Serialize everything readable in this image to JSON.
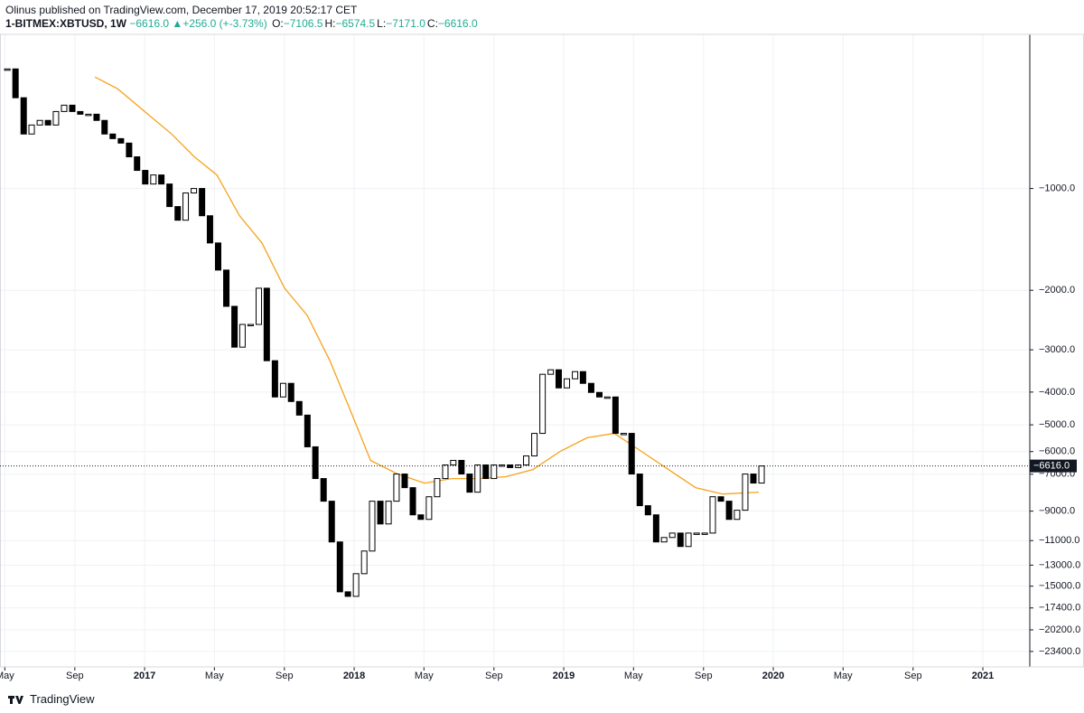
{
  "header": {
    "publisher": "Olinus published on TradingView.com, December 17, 2019 20:52:17 CET",
    "symbol": "1-BITMEX:XBTUSD, 1W",
    "last": "−6616.0",
    "change": "+256.0 (+-3.73%)",
    "ohlc": [
      {
        "key": "O:",
        "value": "−7106.5"
      },
      {
        "key": "H:",
        "value": "−6574.5"
      },
      {
        "key": "L:",
        "value": "−7171.0"
      },
      {
        "key": "C:",
        "value": "−6616.0"
      }
    ]
  },
  "footer": {
    "brand": "TradingView"
  },
  "chart_data": {
    "type": "candlestick",
    "log_scale": true,
    "grid": true,
    "ylim": [
      -26000,
      -350
    ],
    "yticks": [
      {
        "value": -1000,
        "label": "−1000.0"
      },
      {
        "value": -2000,
        "label": "−2000.0"
      },
      {
        "value": -3000,
        "label": "−3000.0"
      },
      {
        "value": -4000,
        "label": "−4000.0"
      },
      {
        "value": -5000,
        "label": "−5000.0"
      },
      {
        "value": -6000,
        "label": "−6000.0"
      },
      {
        "value": -7000,
        "label": "−7000.0"
      },
      {
        "value": -9000,
        "label": "−9000.0"
      },
      {
        "value": -11000,
        "label": "−11000.0"
      },
      {
        "value": -13000,
        "label": "−13000.0"
      },
      {
        "value": -15000,
        "label": "−15000.0"
      },
      {
        "value": -17400,
        "label": "−17400.0"
      },
      {
        "value": -20200,
        "label": "−20200.0"
      },
      {
        "value": -23400,
        "label": "−23400.0"
      }
    ],
    "xlim": [
      2016.31,
      2021.224
    ],
    "xticks": [
      {
        "value": 2016.333,
        "label": "May"
      },
      {
        "value": 2016.667,
        "label": "Sep"
      },
      {
        "value": 2017,
        "label": "2017"
      },
      {
        "value": 2017.333,
        "label": "May"
      },
      {
        "value": 2017.667,
        "label": "Sep"
      },
      {
        "value": 2018,
        "label": "2018"
      },
      {
        "value": 2018.333,
        "label": "May"
      },
      {
        "value": 2018.667,
        "label": "Sep"
      },
      {
        "value": 2019,
        "label": "2019"
      },
      {
        "value": 2019.333,
        "label": "May"
      },
      {
        "value": 2019.667,
        "label": "Sep"
      },
      {
        "value": 2020,
        "label": "2020"
      },
      {
        "value": 2020.333,
        "label": "May"
      },
      {
        "value": 2020.667,
        "label": "Sep"
      },
      {
        "value": 2021,
        "label": "2021"
      }
    ],
    "last_price": {
      "value": -6616,
      "label": "−6616.0"
    },
    "candles": {
      "color_up": "#ffffff",
      "color_down": "#000000",
      "x": [
        2016.345,
        2016.384,
        2016.423,
        2016.461,
        2016.5,
        2016.539,
        2016.577,
        2016.616,
        2016.655,
        2016.693,
        2016.732,
        2016.771,
        2016.809,
        2016.848,
        2016.887,
        2016.926,
        2016.964,
        2017.003,
        2017.042,
        2017.08,
        2017.119,
        2017.158,
        2017.196,
        2017.235,
        2017.274,
        2017.312,
        2017.351,
        2017.39,
        2017.429,
        2017.467,
        2017.506,
        2017.545,
        2017.583,
        2017.622,
        2017.661,
        2017.699,
        2017.738,
        2017.777,
        2017.815,
        2017.854,
        2017.893,
        2017.932,
        2017.97,
        2018.009,
        2018.048,
        2018.086,
        2018.125,
        2018.164,
        2018.202,
        2018.241,
        2018.28,
        2018.318,
        2018.357,
        2018.396,
        2018.435,
        2018.473,
        2018.512,
        2018.551,
        2018.589,
        2018.628,
        2018.667,
        2018.705,
        2018.744,
        2018.783,
        2018.821,
        2018.86,
        2018.899,
        2018.938,
        2018.976,
        2019.015,
        2019.054,
        2019.092,
        2019.131,
        2019.17,
        2019.208,
        2019.247,
        2019.286,
        2019.324,
        2019.363,
        2019.402,
        2019.441,
        2019.479,
        2019.518,
        2019.557,
        2019.595,
        2019.634,
        2019.673,
        2019.711,
        2019.75,
        2019.789,
        2019.827,
        2019.866,
        2019.905,
        2019.944
      ],
      "close": [
        -443,
        -539,
        -690,
        -649,
        -629,
        -649,
        -592,
        -567,
        -592,
        -603,
        -603,
        -629,
        -690,
        -712,
        -734,
        -806,
        -884,
        -970,
        -912,
        -970,
        -1131,
        -1241,
        -1031,
        -1000,
        -1204,
        -1449,
        -1743,
        -2231,
        -2946,
        -2524,
        -2524,
        -1972,
        -3231,
        -4136,
        -3770,
        -4266,
        -4680,
        -5808,
        -7209,
        -8411,
        -11100,
        -15590,
        -16080,
        -13780,
        -11810,
        -8411,
        -9820,
        -8411,
        -6990,
        -7670,
        -9230,
        -9520,
        -8160,
        -7209,
        -6570,
        -6370,
        -6990,
        -7910,
        -6570,
        -7209,
        -6570,
        -6570,
        -6690,
        -6570,
        -6180,
        -5300,
        -3544,
        -3437,
        -3888,
        -3655,
        -3480,
        -3770,
        -4010,
        -4136,
        -4136,
        -5300,
        -5300,
        -6990,
        -8672,
        -9230,
        -11100,
        -10770,
        -10450,
        -11450,
        -10450,
        -10450,
        -10450,
        -8160,
        -8411,
        -9520,
        -8944,
        -6990,
        -7434,
        -6616
      ]
    },
    "moving_average": {
      "color": "#f7a21b",
      "x": [
        2016.763,
        2016.871,
        2017.0,
        2017.129,
        2017.237,
        2017.345,
        2017.453,
        2017.56,
        2017.668,
        2017.776,
        2017.884,
        2017.991,
        2018.078,
        2018.207,
        2018.336,
        2018.466,
        2018.595,
        2018.724,
        2018.853,
        2018.983,
        2019.112,
        2019.241,
        2019.371,
        2019.5,
        2019.629,
        2019.759,
        2019.931
      ],
      "values": [
        -468,
        -507,
        -592,
        -690,
        -806,
        -912,
        -1204,
        -1449,
        -1972,
        -2373,
        -3231,
        -4680,
        -6370,
        -6990,
        -7434,
        -7209,
        -7209,
        -7120,
        -6780,
        -5990,
        -5460,
        -5300,
        -5990,
        -6780,
        -7670,
        -8010,
        -7910
      ]
    }
  }
}
